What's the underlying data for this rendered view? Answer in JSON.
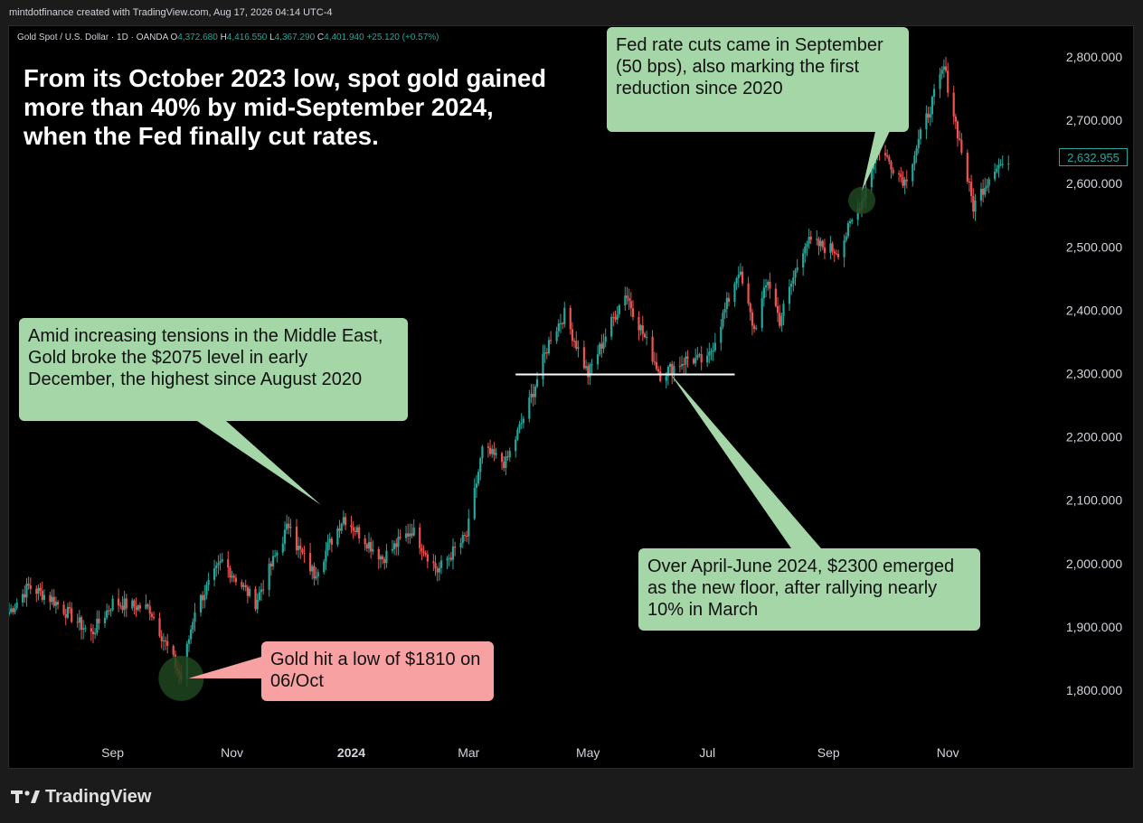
{
  "header": {
    "attribution": "mintdotfinance created with TradingView.com, Aug 17, 2026 04:14 UTC-4"
  },
  "legend": {
    "symbol": "Gold Spot / U.S. Dollar · 1D · OANDA",
    "open_label": "O",
    "open": "4,372.680",
    "high_label": "H",
    "high": "4,416.550",
    "low_label": "L",
    "low": "4,367.290",
    "close_label": "C",
    "close": "4,401.940",
    "change": "+25.120 (+0.57%)"
  },
  "headline": "From its October 2023 low, spot gold gained more than 40% by mid-September 2024, when the Fed finally cut rates.",
  "annotations": {
    "fed_cut": "Fed rate cuts came in September (50 bps), also marking the first reduction since 2020",
    "middle_east": "Amid increasing tensions in the Middle East, Gold broke the $2075 level in early December, the highest since August 2020",
    "floor": "Over April-June 2024, $2300 emerged as the new floor, after rallying nearly 10% in March",
    "low": "Gold hit a low of $1810 on 06/Oct"
  },
  "current_price_label": "2,632.955",
  "colors": {
    "up": "#26a69a",
    "down": "#ef5350",
    "callout_green": "#a5d6a7",
    "callout_red": "#f7a1a3",
    "background": "#000000"
  },
  "footer": {
    "brand": "TradingView",
    "logo_icon": "tradingview-logo-icon"
  },
  "chart_data": {
    "type": "line",
    "title": "Gold Spot / U.S. Dollar · 1D · OANDA",
    "x_ticks": [
      {
        "date": "2023-09-01",
        "label": "Sep"
      },
      {
        "date": "2023-11-01",
        "label": "Nov"
      },
      {
        "date": "2024-01-01",
        "label": "2024"
      },
      {
        "date": "2024-03-01",
        "label": "Mar"
      },
      {
        "date": "2024-05-01",
        "label": "May"
      },
      {
        "date": "2024-07-01",
        "label": "Jul"
      },
      {
        "date": "2024-09-01",
        "label": "Sep"
      },
      {
        "date": "2024-11-01",
        "label": "Nov"
      }
    ],
    "y_ticks": [
      "1,800.000",
      "1,900.000",
      "2,000.000",
      "2,100.000",
      "2,200.000",
      "2,300.000",
      "2,400.000",
      "2,500.000",
      "2,600.000",
      "2,700.000",
      "2,800.000"
    ],
    "ylim": [
      1730,
      2850
    ],
    "xlim": [
      "2023-07-10",
      "2024-12-25"
    ],
    "grid": false,
    "series": [
      {
        "values": [
          {
            "date": "2023-07-10",
            "close": 1925
          },
          {
            "date": "2023-07-20",
            "close": 1965
          },
          {
            "date": "2023-08-01",
            "close": 1945
          },
          {
            "date": "2023-08-21",
            "close": 1890
          },
          {
            "date": "2023-09-01",
            "close": 1940
          },
          {
            "date": "2023-09-20",
            "close": 1930
          },
          {
            "date": "2023-10-06",
            "close": 1820
          },
          {
            "date": "2023-10-13",
            "close": 1930
          },
          {
            "date": "2023-10-27",
            "close": 2005
          },
          {
            "date": "2023-11-13",
            "close": 1940
          },
          {
            "date": "2023-12-01",
            "close": 2070
          },
          {
            "date": "2023-12-04",
            "close": 2030
          },
          {
            "date": "2023-12-13",
            "close": 1985
          },
          {
            "date": "2023-12-28",
            "close": 2075
          },
          {
            "date": "2024-01-17",
            "close": 2010
          },
          {
            "date": "2024-02-01",
            "close": 2055
          },
          {
            "date": "2024-02-14",
            "close": 1990
          },
          {
            "date": "2024-02-29",
            "close": 2045
          },
          {
            "date": "2024-03-08",
            "close": 2180
          },
          {
            "date": "2024-03-20",
            "close": 2160
          },
          {
            "date": "2024-04-01",
            "close": 2255
          },
          {
            "date": "2024-04-12",
            "close": 2360
          },
          {
            "date": "2024-04-19",
            "close": 2395
          },
          {
            "date": "2024-05-01",
            "close": 2300
          },
          {
            "date": "2024-05-20",
            "close": 2430
          },
          {
            "date": "2024-06-07",
            "close": 2300
          },
          {
            "date": "2024-06-21",
            "close": 2325
          },
          {
            "date": "2024-07-01",
            "close": 2320
          },
          {
            "date": "2024-07-17",
            "close": 2465
          },
          {
            "date": "2024-07-25",
            "close": 2370
          },
          {
            "date": "2024-08-01",
            "close": 2450
          },
          {
            "date": "2024-08-07",
            "close": 2385
          },
          {
            "date": "2024-08-20",
            "close": 2510
          },
          {
            "date": "2024-09-06",
            "close": 2495
          },
          {
            "date": "2024-09-18",
            "close": 2575
          },
          {
            "date": "2024-09-26",
            "close": 2660
          },
          {
            "date": "2024-10-10",
            "close": 2605
          },
          {
            "date": "2024-10-30",
            "close": 2785
          },
          {
            "date": "2024-11-14",
            "close": 2565
          },
          {
            "date": "2024-11-25",
            "close": 2630
          },
          {
            "date": "2024-12-02",
            "close": 2633
          }
        ]
      }
    ],
    "reference_line": {
      "value": 2300,
      "from": "2024-03-25",
      "to": "2024-07-15"
    },
    "markers": [
      {
        "date": "2023-10-06",
        "value": 1820
      },
      {
        "date": "2024-09-18",
        "value": 2575
      }
    ]
  }
}
